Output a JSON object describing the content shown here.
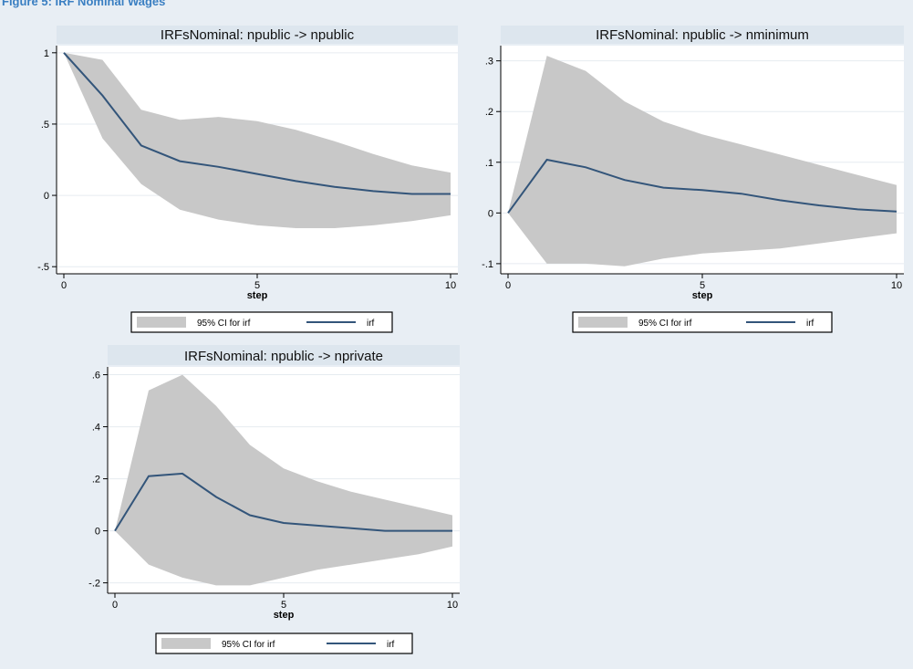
{
  "caption": "Figure 5: IRF Nominal Wages",
  "legend": {
    "ci_label": "95% CI for irf",
    "line_label": "irf"
  },
  "x_axis_label": "step",
  "colors": {
    "band": "#c8c8c8",
    "line": "#33557a",
    "title_bg": "#dde6ee",
    "plot_bg": "#ffffff",
    "grid": "#e6ebf0"
  },
  "chart_data": [
    {
      "type": "area",
      "title": "IRFsNominal: npublic -> npublic",
      "xlabel": "step",
      "x": [
        0,
        1,
        2,
        3,
        4,
        5,
        6,
        7,
        8,
        9,
        10
      ],
      "xticks": [
        0,
        5,
        10
      ],
      "yticks": [
        -0.5,
        0,
        0.5,
        1
      ],
      "ytick_labels": [
        "-.5",
        "0",
        ".5",
        "1"
      ],
      "ylim": [
        -0.55,
        1.05
      ],
      "series": [
        {
          "name": "95% CI for irf",
          "lower": [
            1.0,
            0.4,
            0.08,
            -0.1,
            -0.17,
            -0.21,
            -0.23,
            -0.23,
            -0.21,
            -0.18,
            -0.14
          ],
          "upper": [
            1.0,
            0.95,
            0.6,
            0.53,
            0.55,
            0.52,
            0.46,
            0.38,
            0.29,
            0.21,
            0.16
          ]
        },
        {
          "name": "irf",
          "values": [
            1.0,
            0.7,
            0.35,
            0.24,
            0.2,
            0.15,
            0.1,
            0.06,
            0.03,
            0.01,
            0.01
          ]
        }
      ]
    },
    {
      "type": "area",
      "title": "IRFsNominal: npublic -> nminimum",
      "xlabel": "step",
      "x": [
        0,
        1,
        2,
        3,
        4,
        5,
        6,
        7,
        8,
        9,
        10
      ],
      "xticks": [
        0,
        5,
        10
      ],
      "yticks": [
        -0.1,
        0,
        0.1,
        0.2,
        0.3
      ],
      "ytick_labels": [
        "-.1",
        "0",
        ".1",
        ".2",
        ".3"
      ],
      "ylim": [
        -0.12,
        0.33
      ],
      "series": [
        {
          "name": "95% CI for irf",
          "lower": [
            0,
            -0.1,
            -0.1,
            -0.105,
            -0.09,
            -0.08,
            -0.075,
            -0.07,
            -0.06,
            -0.05,
            -0.04
          ],
          "upper": [
            0,
            0.31,
            0.28,
            0.22,
            0.18,
            0.155,
            0.135,
            0.115,
            0.095,
            0.075,
            0.055
          ]
        },
        {
          "name": "irf",
          "values": [
            0,
            0.105,
            0.09,
            0.065,
            0.05,
            0.045,
            0.038,
            0.025,
            0.015,
            0.007,
            0.003
          ]
        }
      ]
    },
    {
      "type": "area",
      "title": "IRFsNominal: npublic -> nprivate",
      "xlabel": "step",
      "x": [
        0,
        1,
        2,
        3,
        4,
        5,
        6,
        7,
        8,
        9,
        10
      ],
      "xticks": [
        0,
        5,
        10
      ],
      "yticks": [
        -0.2,
        0,
        0.2,
        0.4,
        0.6
      ],
      "ytick_labels": [
        "-.2",
        "0",
        ".2",
        ".4",
        ".6"
      ],
      "ylim": [
        -0.24,
        0.63
      ],
      "series": [
        {
          "name": "95% CI for irf",
          "lower": [
            0,
            -0.13,
            -0.18,
            -0.21,
            -0.21,
            -0.18,
            -0.15,
            -0.13,
            -0.11,
            -0.09,
            -0.06
          ],
          "upper": [
            0,
            0.54,
            0.6,
            0.48,
            0.33,
            0.24,
            0.19,
            0.15,
            0.12,
            0.09,
            0.06
          ]
        },
        {
          "name": "irf",
          "values": [
            0,
            0.21,
            0.22,
            0.13,
            0.06,
            0.03,
            0.02,
            0.01,
            0.0,
            0.0,
            0.0
          ]
        }
      ]
    }
  ]
}
